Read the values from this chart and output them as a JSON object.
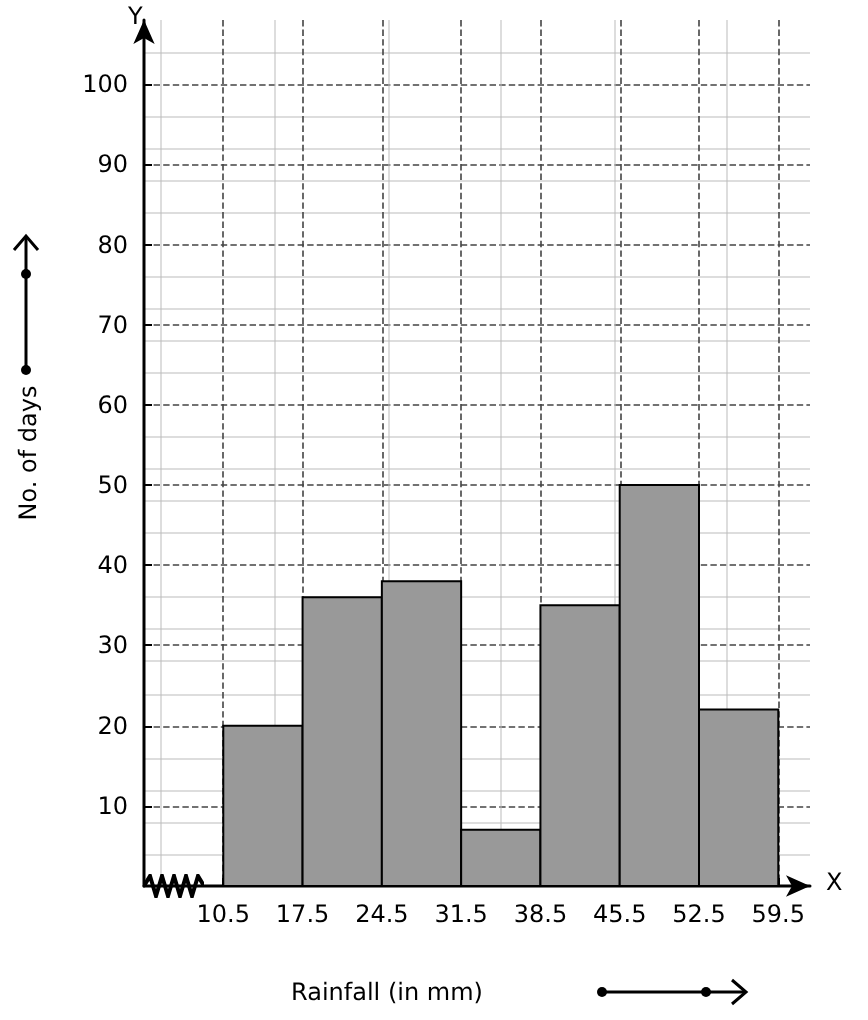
{
  "chart_data": {
    "type": "histogram",
    "xlabel": "Rainfall (in mm)",
    "ylabel": "No. of days",
    "annotations": [
      "X",
      "Y"
    ],
    "bins": [
      10.5,
      17.5,
      24.5,
      31.5,
      38.5,
      45.5,
      52.5,
      59.5
    ],
    "values": [
      20,
      36,
      38,
      7,
      35,
      50,
      22
    ],
    "color": "#999999",
    "xlim": [
      3.5,
      62.3
    ],
    "xticks": [
      10.5,
      17.5,
      24.5,
      31.5,
      38.5,
      45.5,
      52.5,
      59.5
    ],
    "ylim": [
      0,
      108
    ],
    "yticks": [
      10,
      20,
      30,
      40,
      50,
      60,
      70,
      80,
      90,
      100
    ],
    "grid": true
  }
}
